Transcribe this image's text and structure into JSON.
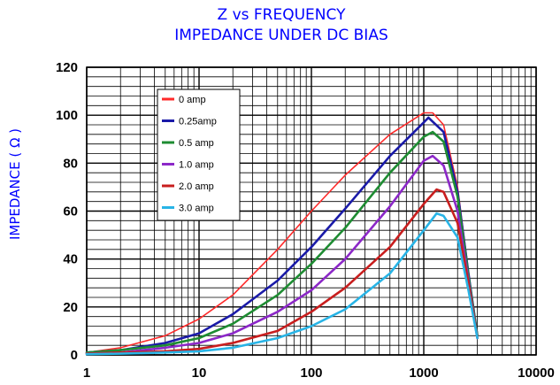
{
  "chart_data": {
    "type": "line",
    "title": "Z vs FREQUENCY",
    "subtitle": "IMPEDANCE UNDER DC BIAS",
    "ylabel": "IMPEDANCE ( Ω )",
    "xlabel": "",
    "x_scale": "log",
    "xlim": [
      1,
      10000
    ],
    "ylim": [
      0,
      120
    ],
    "x_ticks": [
      1,
      10,
      100,
      1000,
      10000
    ],
    "x_tick_labels": [
      "1",
      "10",
      "100",
      "1000",
      "10000"
    ],
    "y_ticks": [
      0,
      20,
      40,
      60,
      80,
      100,
      120
    ],
    "y_tick_labels": [
      "0",
      "20",
      "40",
      "60",
      "80",
      "100",
      "120"
    ],
    "grid": true,
    "legend_position": "top-left",
    "series": [
      {
        "name": "0    amp",
        "color": "#ff2a2a",
        "points": [
          [
            1,
            1
          ],
          [
            2,
            3
          ],
          [
            5,
            8
          ],
          [
            10,
            15
          ],
          [
            20,
            25
          ],
          [
            50,
            44
          ],
          [
            100,
            60
          ],
          [
            200,
            75
          ],
          [
            500,
            92
          ],
          [
            1000,
            101
          ],
          [
            1200,
            101
          ],
          [
            1500,
            96
          ],
          [
            2000,
            70
          ],
          [
            2500,
            35
          ],
          [
            3000,
            8
          ]
        ]
      },
      {
        "name": "0.25amp",
        "color": "#1a1aa8",
        "points": [
          [
            1,
            1
          ],
          [
            2,
            2
          ],
          [
            5,
            5
          ],
          [
            10,
            9
          ],
          [
            20,
            17
          ],
          [
            50,
            31
          ],
          [
            100,
            45
          ],
          [
            200,
            61
          ],
          [
            500,
            83
          ],
          [
            1000,
            97
          ],
          [
            1100,
            99
          ],
          [
            1500,
            93
          ],
          [
            2000,
            68
          ],
          [
            2500,
            34
          ],
          [
            3000,
            8
          ]
        ]
      },
      {
        "name": "0.5 amp",
        "color": "#1e8c32",
        "points": [
          [
            1,
            1
          ],
          [
            2,
            2
          ],
          [
            5,
            4
          ],
          [
            10,
            7
          ],
          [
            20,
            13
          ],
          [
            50,
            25
          ],
          [
            100,
            38
          ],
          [
            200,
            53
          ],
          [
            500,
            76
          ],
          [
            1000,
            91
          ],
          [
            1200,
            93
          ],
          [
            1500,
            89
          ],
          [
            2000,
            66
          ],
          [
            2500,
            33
          ],
          [
            3000,
            8
          ]
        ]
      },
      {
        "name": "1.0 amp",
        "color": "#8c28c8",
        "points": [
          [
            1,
            0.5
          ],
          [
            2,
            1
          ],
          [
            5,
            3
          ],
          [
            10,
            5
          ],
          [
            20,
            9
          ],
          [
            50,
            18
          ],
          [
            100,
            27
          ],
          [
            200,
            40
          ],
          [
            500,
            62
          ],
          [
            1000,
            81
          ],
          [
            1200,
            83
          ],
          [
            1500,
            79
          ],
          [
            2000,
            60
          ],
          [
            2500,
            31
          ],
          [
            3000,
            7
          ]
        ]
      },
      {
        "name": "2.0 amp",
        "color": "#c81e1e",
        "points": [
          [
            1,
            0.5
          ],
          [
            2,
            1
          ],
          [
            5,
            1.5
          ],
          [
            10,
            2.5
          ],
          [
            20,
            5
          ],
          [
            50,
            10
          ],
          [
            100,
            18
          ],
          [
            200,
            28
          ],
          [
            500,
            45
          ],
          [
            1000,
            63
          ],
          [
            1300,
            69
          ],
          [
            1500,
            68
          ],
          [
            2000,
            55
          ],
          [
            2500,
            30
          ],
          [
            3000,
            7
          ]
        ]
      },
      {
        "name": "3.0 amp",
        "color": "#28b4e6",
        "points": [
          [
            1,
            0.3
          ],
          [
            2,
            0.5
          ],
          [
            5,
            1
          ],
          [
            10,
            1.5
          ],
          [
            20,
            3
          ],
          [
            50,
            7
          ],
          [
            100,
            12
          ],
          [
            200,
            19
          ],
          [
            500,
            34
          ],
          [
            1000,
            52
          ],
          [
            1300,
            59
          ],
          [
            1500,
            58
          ],
          [
            2000,
            49
          ],
          [
            2500,
            27
          ],
          [
            3000,
            7
          ]
        ]
      }
    ]
  }
}
